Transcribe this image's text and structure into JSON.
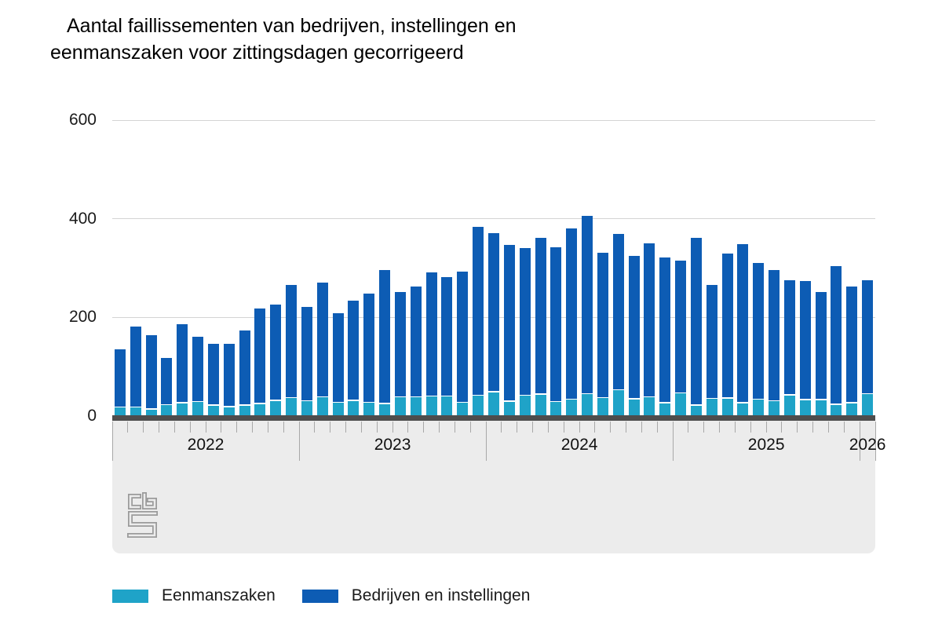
{
  "title": {
    "line1": "Aantal faillissementen van bedrijven, instellingen en",
    "line2": "eenmanszaken voor zittingsdagen gecorrigeerd"
  },
  "legend": [
    {
      "label": "Eenmanszaken",
      "color": "#1fa3c8"
    },
    {
      "label": "Bedrijven en instellingen",
      "color": "#0d5cb4"
    }
  ],
  "logo_name": "cbs-logo",
  "chart_data": {
    "type": "bar",
    "stacked": true,
    "title": "Aantal faillissementen van bedrijven, instellingen en eenmanszaken voor zittingsdagen gecorrigeerd",
    "xlabel": "",
    "ylabel": "",
    "ylim": [
      0,
      600
    ],
    "y_ticks": [
      0,
      200,
      400,
      600
    ],
    "grid": "horizontal",
    "legend_position": "bottom",
    "x": [
      "2022-01",
      "2022-02",
      "2022-03",
      "2022-04",
      "2022-05",
      "2022-06",
      "2022-07",
      "2022-08",
      "2022-09",
      "2022-10",
      "2022-11",
      "2022-12",
      "2023-01",
      "2023-02",
      "2023-03",
      "2023-04",
      "2023-05",
      "2023-06",
      "2023-07",
      "2023-08",
      "2023-09",
      "2023-10",
      "2023-11",
      "2023-12",
      "2024-01",
      "2024-02",
      "2024-03",
      "2024-04",
      "2024-05",
      "2024-06",
      "2024-07",
      "2024-08",
      "2024-09",
      "2024-10",
      "2024-11",
      "2024-12",
      "2025-01",
      "2025-02",
      "2025-03",
      "2025-04",
      "2025-05",
      "2025-06",
      "2025-07",
      "2025-08",
      "2025-09",
      "2025-10",
      "2025-11",
      "2025-12",
      "2026-01"
    ],
    "series": [
      {
        "name": "Eenmanszaken",
        "color": "#1fa3c8",
        "values": [
          17,
          17,
          13,
          22,
          26,
          28,
          21,
          18,
          21,
          24,
          31,
          36,
          30,
          38,
          27,
          31,
          27,
          24,
          38,
          38,
          39,
          39,
          27,
          41,
          48,
          29,
          41,
          43,
          28,
          33,
          44,
          36,
          52,
          34,
          38,
          26,
          46,
          21,
          35,
          35,
          26,
          33,
          30,
          42,
          32,
          32,
          23,
          26,
          44
        ]
      },
      {
        "name": "Bedrijven en instellingen",
        "color": "#0d5cb4",
        "values": [
          119,
          165,
          151,
          95,
          161,
          133,
          126,
          129,
          152,
          194,
          195,
          230,
          192,
          233,
          182,
          203,
          221,
          272,
          213,
          224,
          252,
          243,
          266,
          342,
          323,
          318,
          299,
          319,
          314,
          347,
          362,
          295,
          317,
          291,
          312,
          295,
          269,
          340,
          230,
          295,
          323,
          277,
          266,
          234,
          242,
          219,
          281,
          237,
          232
        ]
      }
    ],
    "year_labels": [
      {
        "label": "2022",
        "start": 0,
        "months": 12
      },
      {
        "label": "2023",
        "start": 12,
        "months": 12
      },
      {
        "label": "2024",
        "start": 24,
        "months": 12
      },
      {
        "label": "2025",
        "start": 36,
        "months": 12
      },
      {
        "label": "2026",
        "start": 48,
        "months": 1
      }
    ]
  }
}
